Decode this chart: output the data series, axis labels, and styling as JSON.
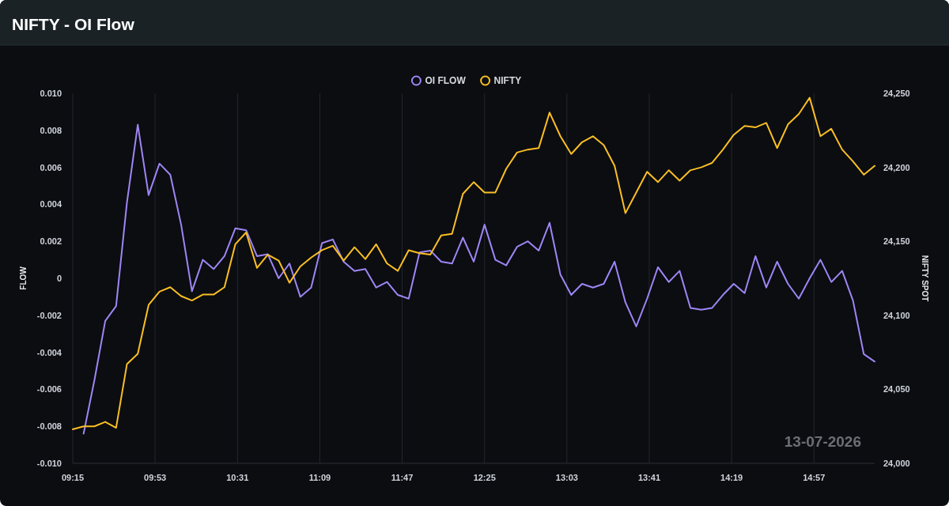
{
  "chart_data": {
    "type": "line",
    "title": "NIFTY - OI Flow",
    "ylabel": "FLOW",
    "y2label": "NIFTY SPOT",
    "x": [
      9.25,
      9.3333,
      9.4167,
      9.5,
      9.5833,
      9.6667,
      9.75,
      9.8333,
      9.9167,
      10,
      10.0833,
      10.1667,
      10.25,
      10.3333,
      10.4167,
      10.5,
      10.5833,
      10.6667,
      10.75,
      10.8333,
      10.9167,
      11,
      11.0833,
      11.1667,
      11.25,
      11.3333,
      11.4167,
      11.5,
      11.5833,
      11.6667,
      11.75,
      11.8333,
      11.9167,
      12,
      12.0833,
      12.1667,
      12.25,
      12.3333,
      12.4167,
      12.5,
      12.5833,
      12.6667,
      12.75,
      12.8333,
      12.9167,
      13,
      13.0833,
      13.1667,
      13.25,
      13.3333,
      13.4167,
      13.5,
      13.5833,
      13.6667,
      13.75,
      13.8333,
      13.9167,
      14,
      14.0833,
      14.1667,
      14.25,
      14.3333,
      14.4167,
      14.5,
      14.5833,
      14.6667,
      14.75,
      14.8333,
      14.9167,
      15,
      15.0833,
      15.1667,
      15.25,
      15.3333,
      15.4167
    ],
    "series": [
      {
        "name": "OI FLOW",
        "color": "#9f86f5",
        "values": [
          null,
          -0.0084,
          -0.0055,
          -0.0023,
          -0.0015,
          0.0041,
          0.0083,
          0.0045,
          0.0062,
          0.0056,
          0.0029,
          -0.0007,
          0.001,
          0.0005,
          0.0012,
          0.0027,
          0.0026,
          0.0012,
          0.0013,
          0.0,
          0.0008,
          -0.001,
          -0.0005,
          0.0019,
          0.0021,
          0.0009,
          0.0004,
          0.0005,
          -0.0005,
          -0.0002,
          -0.0009,
          -0.0011,
          0.0014,
          0.0015,
          0.0009,
          0.0008,
          0.0022,
          0.0009,
          0.0029,
          0.001,
          0.0007,
          0.0017,
          0.002,
          0.0015,
          0.003,
          0.0002,
          -0.0009,
          -0.0003,
          -0.0005,
          -0.0003,
          0.0009,
          -0.0013,
          -0.0026,
          -0.0011,
          0.0006,
          -0.0002,
          0.0004,
          -0.0016,
          -0.0017,
          -0.0016,
          -0.0009,
          -0.0003,
          -0.0008,
          0.0012,
          -0.0005,
          0.0009,
          -0.0003,
          -0.0011,
          0.0,
          0.001,
          -0.0002,
          0.0004,
          -0.0012,
          -0.0041,
          -0.0045
        ]
      },
      {
        "name": "NIFTY",
        "color": "#fbbf24",
        "axis": "y2",
        "values": [
          24023,
          24025,
          24025,
          24028,
          24024,
          24067,
          24074,
          24107,
          24116,
          24119,
          24113,
          24110,
          24114,
          24114,
          24119,
          24148,
          24156,
          24132,
          24141,
          24137,
          24122,
          24133,
          24139,
          24144,
          24147,
          24137,
          24146,
          24138,
          24148,
          24135,
          24130,
          24144,
          24142,
          24141,
          24154,
          24155,
          24182,
          24190,
          24183,
          24183,
          24199,
          24210,
          24212,
          24213,
          24237,
          24221,
          24209,
          24217,
          24221,
          24215,
          24201,
          24169,
          24183,
          24197,
          24190,
          24198,
          24191,
          24198,
          24200,
          24203,
          24212,
          24222,
          24228,
          24227,
          24230,
          24213,
          24229,
          24236,
          24247,
          24221,
          24226,
          24212,
          24204,
          24195,
          24201
        ]
      }
    ],
    "xlim": [
      9.25,
      15.4167
    ],
    "xticks": [
      {
        "value": 9.25,
        "label": "09:15"
      },
      {
        "value": 9.8833,
        "label": "09:53"
      },
      {
        "value": 10.5167,
        "label": "10:31"
      },
      {
        "value": 11.15,
        "label": "11:09"
      },
      {
        "value": 11.7833,
        "label": "11:47"
      },
      {
        "value": 12.4167,
        "label": "12:25"
      },
      {
        "value": 13.05,
        "label": "13:03"
      },
      {
        "value": 13.6833,
        "label": "13:41"
      },
      {
        "value": 14.3167,
        "label": "14:19"
      },
      {
        "value": 14.95,
        "label": "14:57"
      }
    ],
    "ylim": [
      -0.01,
      0.01
    ],
    "yticks": [
      {
        "value": -0.01,
        "label": "-0.010"
      },
      {
        "value": -0.008,
        "label": "-0.008"
      },
      {
        "value": -0.006,
        "label": "-0.006"
      },
      {
        "value": -0.004,
        "label": "-0.004"
      },
      {
        "value": -0.002,
        "label": "-0.002"
      },
      0,
      {
        "value": 0.002,
        "label": "0.002"
      },
      {
        "value": 0.004,
        "label": "0.004"
      },
      {
        "value": 0.006,
        "label": "0.006"
      },
      {
        "value": 0.008,
        "label": "0.008"
      },
      {
        "value": 0.01,
        "label": "0.010"
      }
    ],
    "y2lim": [
      24000,
      24250
    ],
    "y2ticks": [
      {
        "value": 24000,
        "label": "24,000"
      },
      {
        "value": 24050,
        "label": "24,050"
      },
      {
        "value": 24100,
        "label": "24,100"
      },
      {
        "value": 24150,
        "label": "24,150"
      },
      {
        "value": 24200,
        "label": "24,200"
      },
      {
        "value": 24250,
        "label": "24,250"
      }
    ],
    "grid": "x",
    "legend": "top",
    "marker": "none",
    "line_style": "solid",
    "annotations": [
      "13-07-2026"
    ]
  }
}
